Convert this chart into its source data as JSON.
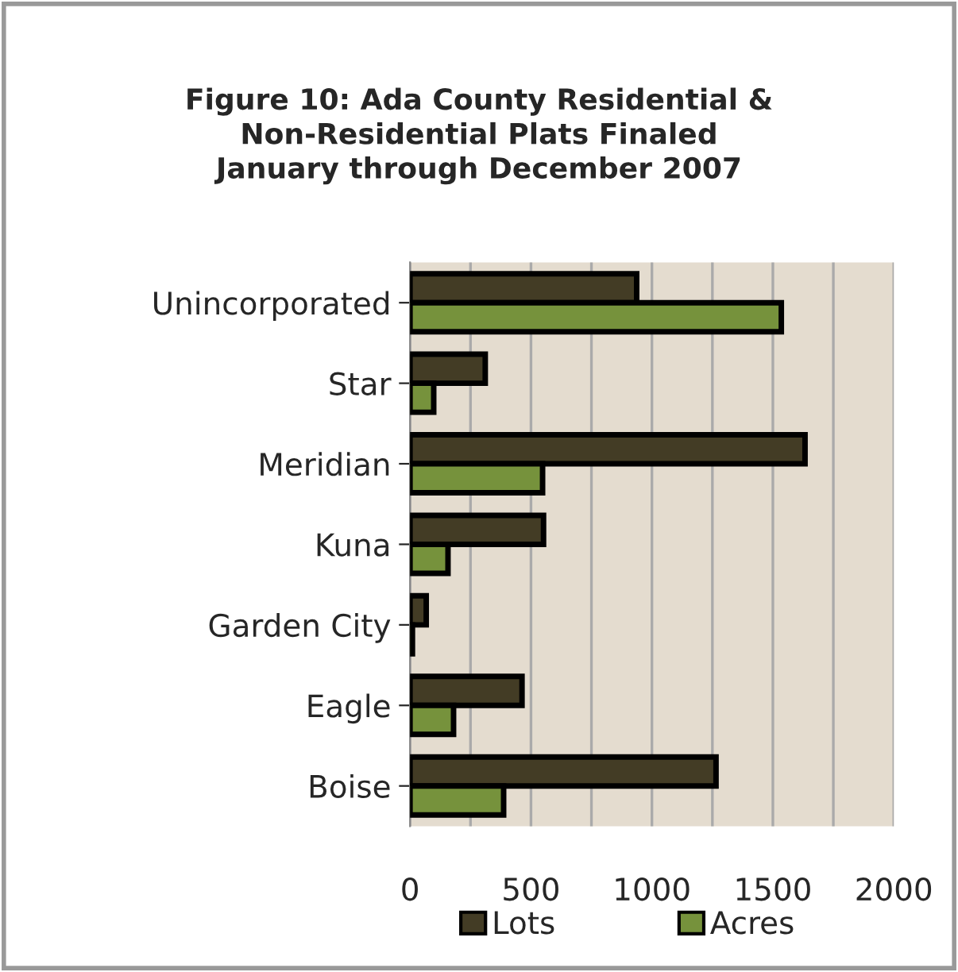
{
  "chart_data": {
    "type": "bar",
    "orientation": "horizontal",
    "title": "Figure 10: Ada County Residential &\nNon-Residential Plats Finaled\nJanuary through December 2007",
    "categories": [
      "Unincorporated",
      "Star",
      "Meridian",
      "Kuna",
      "Garden City",
      "Eagle",
      "Boise"
    ],
    "series": [
      {
        "name": "Lots",
        "color": "#433c25",
        "values": [
          937,
          311,
          1633,
          552,
          67,
          463,
          1265
        ]
      },
      {
        "name": "Acres",
        "color": "#76923c",
        "values": [
          1535,
          98,
          548,
          157,
          10,
          180,
          387
        ]
      }
    ],
    "xlim": [
      0,
      2000
    ],
    "xticks": [
      0,
      {
        "value": 250,
        "label": null
      },
      500,
      {
        "value": 750,
        "label": null
      },
      1000,
      {
        "value": 1250,
        "label": null
      },
      1500,
      {
        "value": 1750,
        "label": null
      },
      2000
    ],
    "grid": "x",
    "legend": "bottom"
  }
}
